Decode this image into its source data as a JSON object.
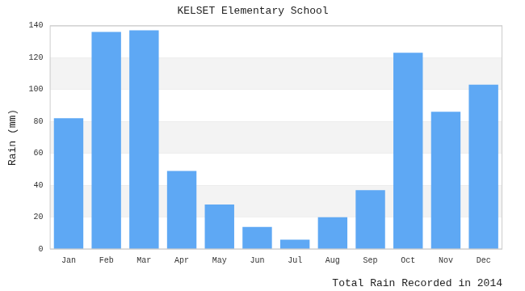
{
  "chart_data": {
    "type": "bar",
    "title": "KELSET Elementary School",
    "ylabel": "Rain (mm)",
    "xlabel": "Total Rain Recorded in 2014",
    "categories": [
      "Jan",
      "Feb",
      "Mar",
      "Apr",
      "May",
      "Jun",
      "Jul",
      "Aug",
      "Sep",
      "Oct",
      "Nov",
      "Dec"
    ],
    "values": [
      82,
      136,
      137,
      49,
      28,
      14,
      6,
      20,
      37,
      123,
      86,
      103
    ],
    "color": "#5ea8f4",
    "ylim": [
      0,
      140
    ],
    "yticks": [
      0,
      20,
      40,
      60,
      80,
      100,
      120,
      140
    ],
    "grid": true
  }
}
